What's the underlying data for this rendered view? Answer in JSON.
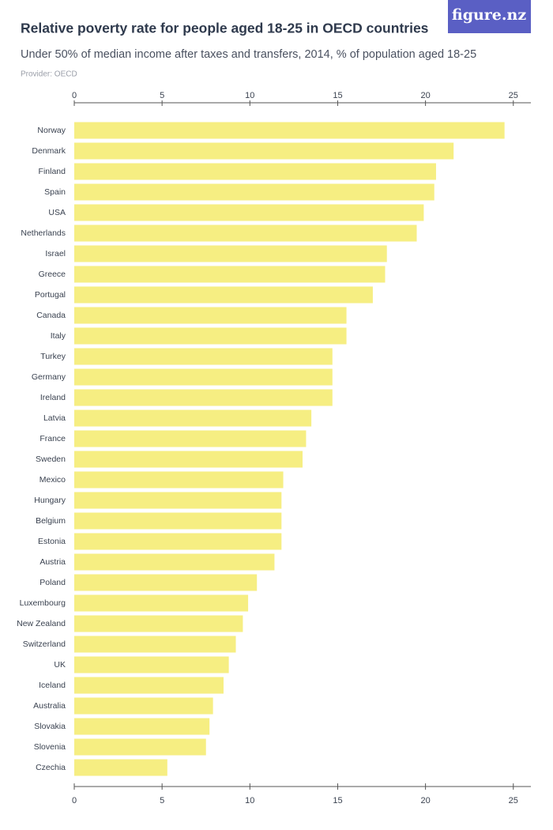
{
  "logo": "figure.nz",
  "chart_data": {
    "type": "bar",
    "orientation": "horizontal",
    "title": "Relative poverty rate for people aged 18-25 in OECD countries",
    "subtitle": "Under 50% of median income after taxes and transfers, 2014, % of population aged 18-25",
    "provider": "Provider: OECD",
    "categories": [
      "Norway",
      "Denmark",
      "Finland",
      "Spain",
      "USA",
      "Netherlands",
      "Israel",
      "Greece",
      "Portugal",
      "Canada",
      "Italy",
      "Turkey",
      "Germany",
      "Ireland",
      "Latvia",
      "France",
      "Sweden",
      "Mexico",
      "Hungary",
      "Belgium",
      "Estonia",
      "Austria",
      "Poland",
      "Luxembourg",
      "New Zealand",
      "Switzerland",
      "UK",
      "Iceland",
      "Australia",
      "Slovakia",
      "Slovenia",
      "Czechia"
    ],
    "values": [
      24.5,
      21.6,
      20.6,
      20.5,
      19.9,
      19.5,
      17.8,
      17.7,
      17.0,
      15.5,
      15.5,
      14.7,
      14.7,
      14.7,
      13.5,
      13.2,
      13.0,
      11.9,
      11.8,
      11.8,
      11.8,
      11.4,
      10.4,
      9.9,
      9.6,
      9.2,
      8.8,
      8.5,
      7.9,
      7.7,
      7.5,
      5.3
    ],
    "color": "#f6ee82",
    "xlim": [
      0,
      26
    ],
    "xticks": [
      0,
      5,
      10,
      15,
      20,
      25
    ],
    "grid": false
  }
}
